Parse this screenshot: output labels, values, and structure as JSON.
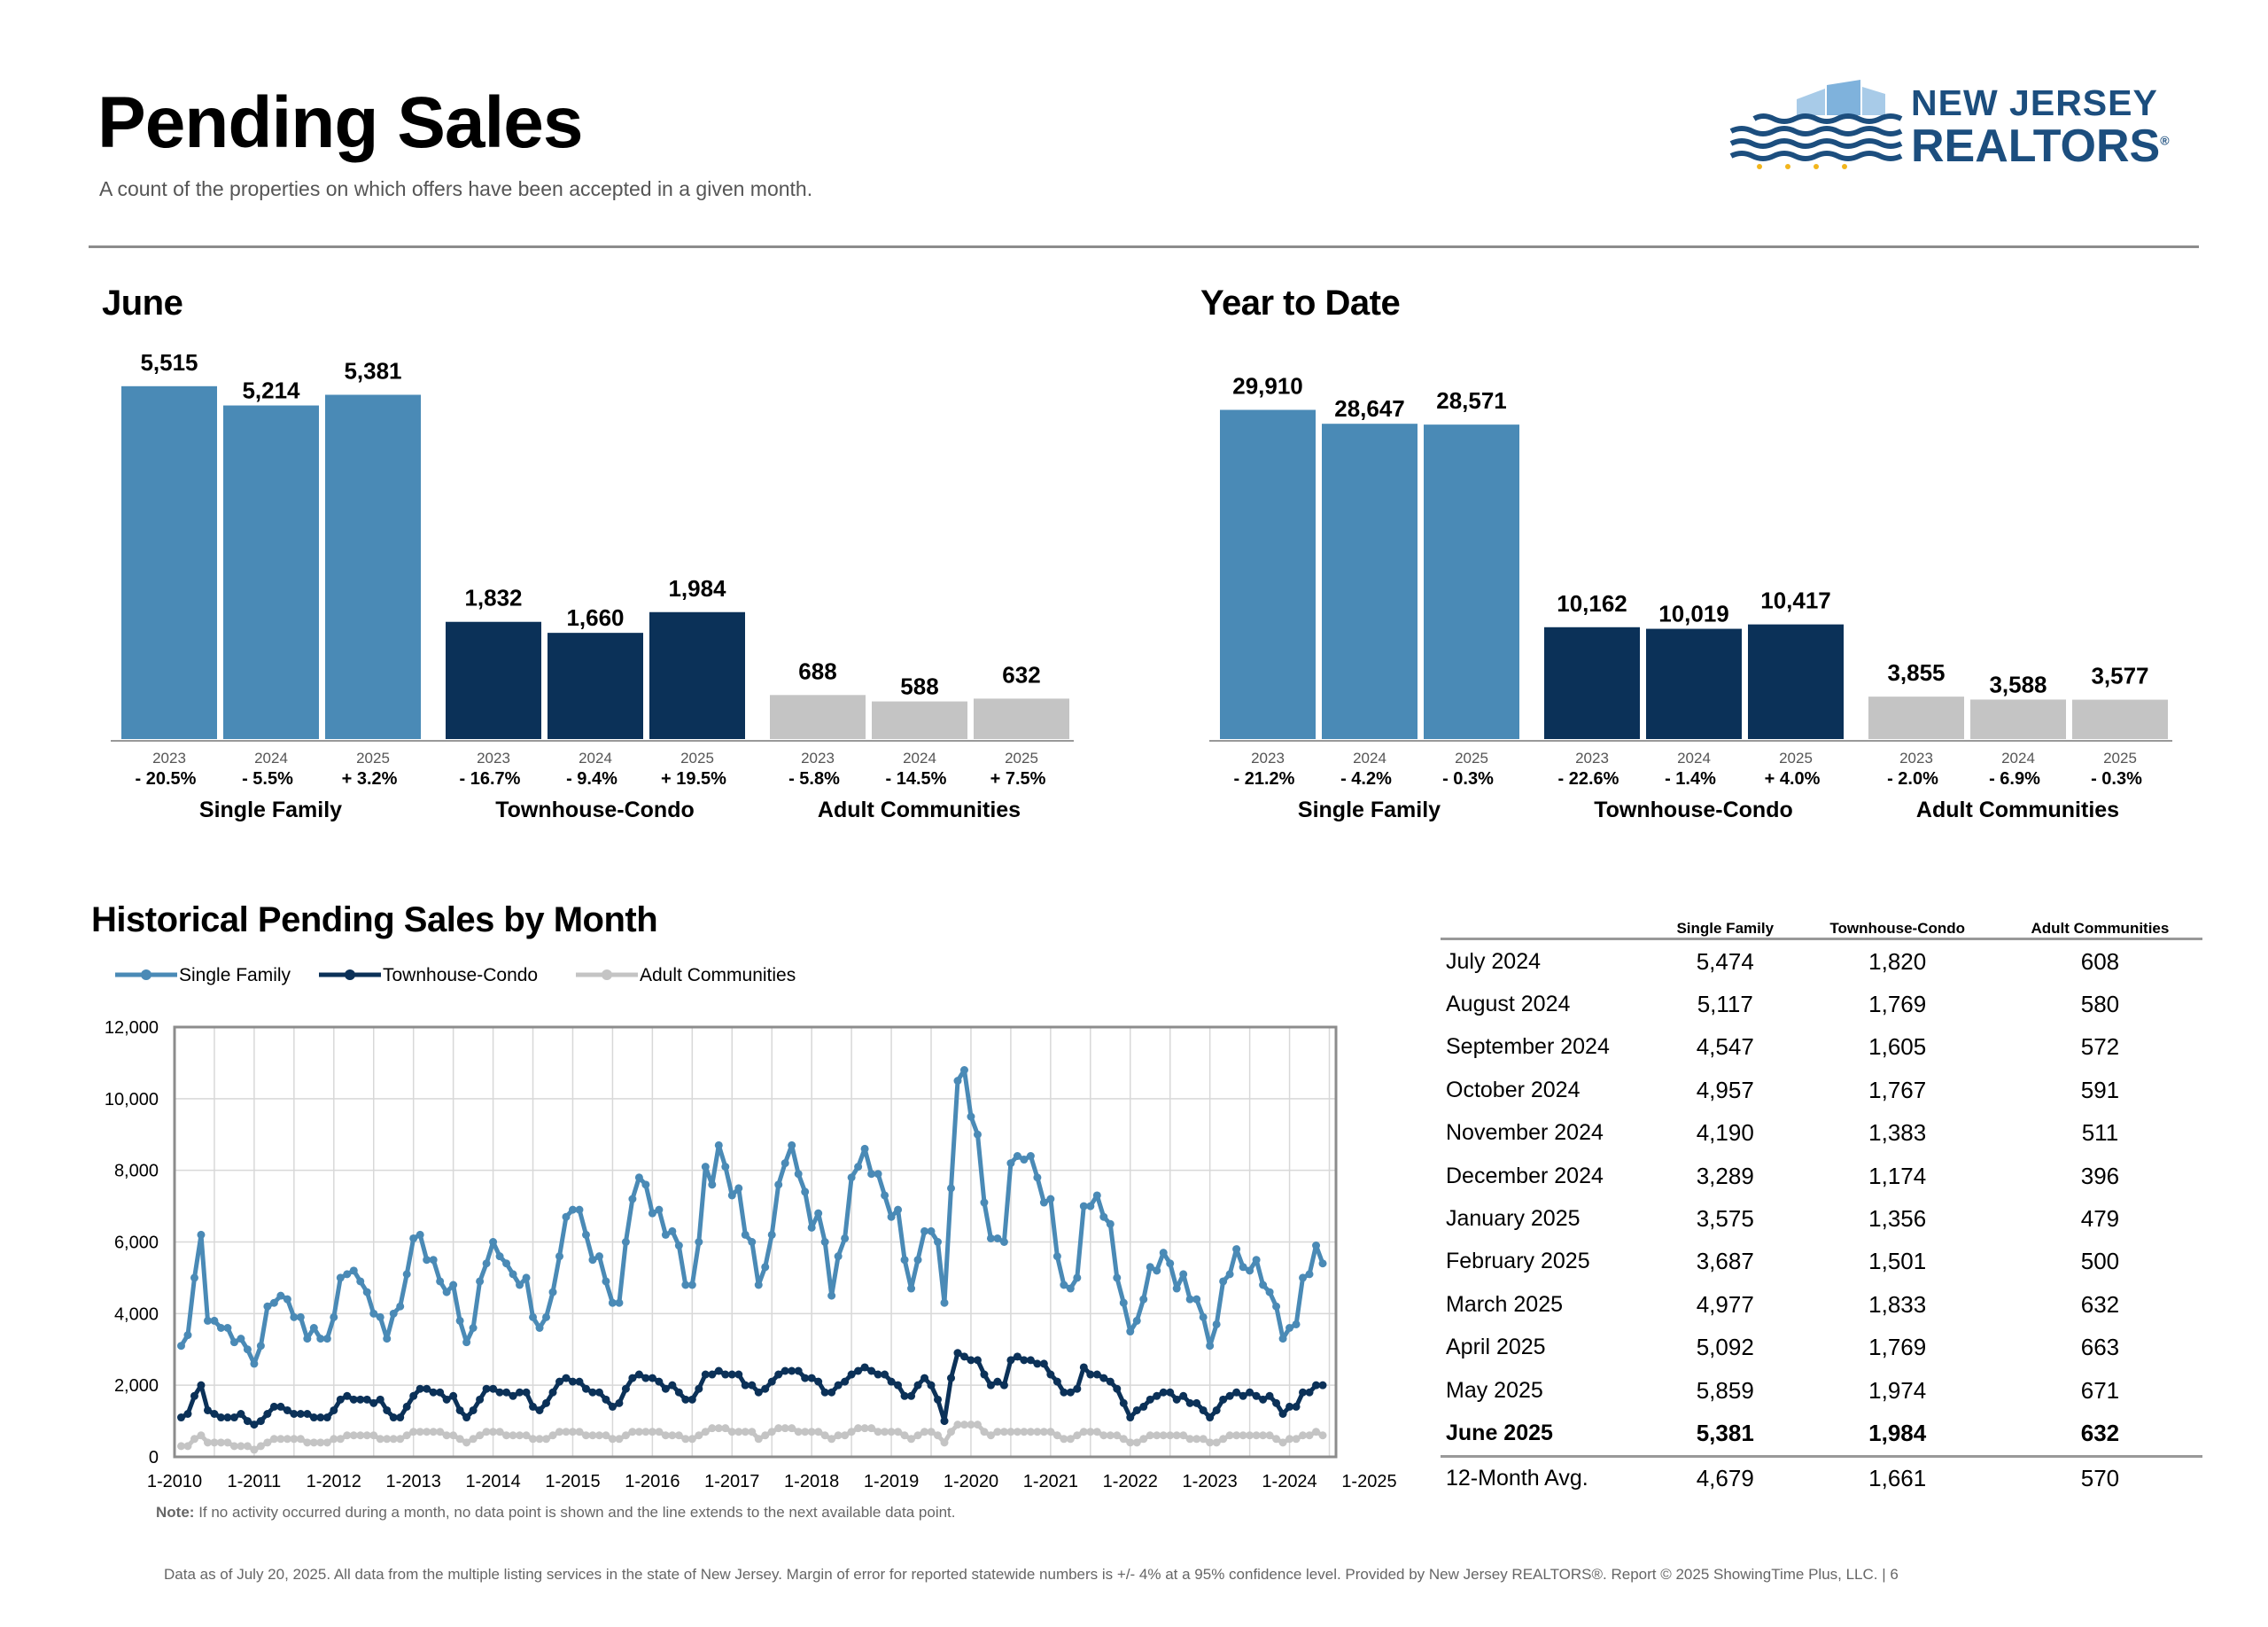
{
  "page": {
    "title": "Pending Sales",
    "subtitle": "A count of the properties on which offers have been accepted in a given month."
  },
  "logo": {
    "line1": "NEW JERSEY",
    "line2": "REALTORS",
    "mark": "®"
  },
  "colors": {
    "single_family": "#4a8ab6",
    "townhouse_condo": "#0b3158",
    "adult_communities": "#c4c4c4",
    "rule": "#8c8c8c"
  },
  "june": {
    "title": "June"
  },
  "ytd": {
    "title": "Year to Date"
  },
  "history": {
    "title": "Historical Pending Sales by Month",
    "note_label": "Note:",
    "note_text": "If no activity occurred during a month, no data point is shown and the line extends to the next available data point."
  },
  "footer": "Data as of July 20, 2025. All data from the multiple listing services in the state of New Jersey. Margin of error for reported statewide numbers is +/- 4% at a 95% confidence level. Provided by New Jersey REALTORS®. Report © 2025 ShowingTime Plus, LLC. | 6",
  "chart_data": [
    {
      "type": "bar",
      "title": "June",
      "groups": [
        {
          "name": "Single Family",
          "years": [
            "2023",
            "2024",
            "2025"
          ],
          "values": [
            5515,
            5214,
            5381
          ],
          "labels": [
            "5,515",
            "5,214",
            "5,381"
          ],
          "changes": [
            "- 20.5%",
            "- 5.5%",
            "+ 3.2%"
          ]
        },
        {
          "name": "Townhouse-Condo",
          "years": [
            "2023",
            "2024",
            "2025"
          ],
          "values": [
            1832,
            1660,
            1984
          ],
          "labels": [
            "1,832",
            "1,660",
            "1,984"
          ],
          "changes": [
            "- 16.7%",
            "- 9.4%",
            "+ 19.5%"
          ]
        },
        {
          "name": "Adult Communities",
          "years": [
            "2023",
            "2024",
            "2025"
          ],
          "values": [
            688,
            588,
            632
          ],
          "labels": [
            "688",
            "588",
            "632"
          ],
          "changes": [
            "- 5.8%",
            "- 14.5%",
            "+ 7.5%"
          ]
        }
      ]
    },
    {
      "type": "bar",
      "title": "Year to Date",
      "groups": [
        {
          "name": "Single Family",
          "years": [
            "2023",
            "2024",
            "2025"
          ],
          "values": [
            29910,
            28647,
            28571
          ],
          "labels": [
            "29,910",
            "28,647",
            "28,571"
          ],
          "changes": [
            "- 21.2%",
            "- 4.2%",
            "- 0.3%"
          ]
        },
        {
          "name": "Townhouse-Condo",
          "years": [
            "2023",
            "2024",
            "2025"
          ],
          "values": [
            10162,
            10019,
            10417
          ],
          "labels": [
            "10,162",
            "10,019",
            "10,417"
          ],
          "changes": [
            "- 22.6%",
            "- 1.4%",
            "+ 4.0%"
          ]
        },
        {
          "name": "Adult Communities",
          "years": [
            "2023",
            "2024",
            "2025"
          ],
          "values": [
            3855,
            3588,
            3577
          ],
          "labels": [
            "3,855",
            "3,588",
            "3,577"
          ],
          "changes": [
            "- 2.0%",
            "- 6.9%",
            "- 0.3%"
          ]
        }
      ]
    },
    {
      "type": "line",
      "title": "Historical Pending Sales by Month",
      "x_start": "1-2010",
      "xticks": [
        "1-2010",
        "1-2011",
        "1-2012",
        "1-2013",
        "1-2014",
        "1-2015",
        "1-2016",
        "1-2017",
        "1-2018",
        "1-2019",
        "1-2020",
        "1-2021",
        "1-2022",
        "1-2023",
        "1-2024",
        "1-2025"
      ],
      "yticks": [
        "0",
        "2,000",
        "4,000",
        "6,000",
        "8,000",
        "10,000",
        "12,000"
      ],
      "ylim": [
        0,
        12000
      ],
      "grid": true,
      "legend": "top-left",
      "series": [
        {
          "name": "Single Family",
          "color": "#4a8ab6",
          "values": [
            3100,
            3400,
            5000,
            6200,
            3800,
            3800,
            3600,
            3600,
            3200,
            3300,
            3000,
            2600,
            3100,
            4200,
            4300,
            4500,
            4400,
            3900,
            3900,
            3300,
            3600,
            3300,
            3300,
            3900,
            5000,
            5100,
            5200,
            4900,
            4600,
            4000,
            3900,
            3300,
            4000,
            4200,
            5100,
            6100,
            6200,
            5500,
            5500,
            4900,
            4600,
            4800,
            3800,
            3200,
            3600,
            4900,
            5400,
            6000,
            5600,
            5400,
            5100,
            4800,
            5000,
            3900,
            3600,
            3900,
            4600,
            5600,
            6700,
            6900,
            6900,
            6200,
            5500,
            5600,
            4900,
            4300,
            4300,
            6000,
            7200,
            7800,
            7600,
            6800,
            6900,
            6200,
            6300,
            5900,
            4800,
            4800,
            6000,
            8100,
            7600,
            8700,
            8100,
            7300,
            7500,
            6200,
            6000,
            4800,
            5300,
            6200,
            7600,
            8200,
            8700,
            7900,
            7400,
            6400,
            6800,
            6000,
            4500,
            5600,
            6100,
            7800,
            8100,
            8600,
            7900,
            7900,
            7300,
            6700,
            6900,
            5500,
            4700,
            5500,
            6300,
            6300,
            6000,
            4300,
            7500,
            10500,
            10800,
            9500,
            9000,
            7100,
            6100,
            6100,
            6000,
            8200,
            8400,
            8300,
            8400,
            7800,
            7100,
            7200,
            5600,
            4800,
            4700,
            5000,
            7000,
            7000,
            7300,
            6700,
            6500,
            5000,
            4300,
            3500,
            3800,
            4400,
            5300,
            5200,
            5700,
            5400,
            4700,
            5100,
            4400,
            4400,
            3900,
            3100,
            3700,
            4900,
            5100,
            5800,
            5300,
            5200,
            5500,
            4800,
            4600,
            4200,
            3300,
            3600,
            3700,
            5000,
            5100,
            5900,
            5400
          ]
        },
        {
          "name": "Townhouse-Condo",
          "color": "#0b3158",
          "values": [
            1100,
            1200,
            1700,
            2000,
            1300,
            1200,
            1100,
            1100,
            1100,
            1200,
            1000,
            900,
            1000,
            1200,
            1400,
            1400,
            1300,
            1200,
            1200,
            1200,
            1100,
            1100,
            1100,
            1300,
            1600,
            1700,
            1600,
            1600,
            1600,
            1500,
            1600,
            1300,
            1100,
            1100,
            1400,
            1700,
            1900,
            1900,
            1800,
            1800,
            1600,
            1700,
            1300,
            1100,
            1300,
            1600,
            1900,
            1900,
            1800,
            1800,
            1700,
            1800,
            1800,
            1400,
            1300,
            1500,
            1800,
            2100,
            2200,
            2100,
            2100,
            1900,
            1800,
            1800,
            1600,
            1400,
            1500,
            1900,
            2200,
            2300,
            2200,
            2200,
            2100,
            1900,
            2000,
            1800,
            1600,
            1600,
            1900,
            2300,
            2300,
            2400,
            2300,
            2300,
            2300,
            2000,
            2000,
            1800,
            1900,
            2100,
            2300,
            2400,
            2400,
            2400,
            2200,
            2200,
            2100,
            1800,
            1800,
            2000,
            2100,
            2300,
            2400,
            2500,
            2400,
            2300,
            2300,
            2100,
            2000,
            1700,
            1700,
            2000,
            2200,
            2000,
            1600,
            1000,
            2200,
            2900,
            2800,
            2700,
            2700,
            2300,
            2000,
            2100,
            2000,
            2700,
            2800,
            2700,
            2700,
            2600,
            2600,
            2300,
            2100,
            1800,
            1800,
            1900,
            2500,
            2300,
            2300,
            2200,
            2100,
            1900,
            1500,
            1100,
            1300,
            1400,
            1600,
            1700,
            1800,
            1800,
            1600,
            1700,
            1500,
            1500,
            1300,
            1100,
            1300,
            1600,
            1700,
            1800,
            1700,
            1800,
            1700,
            1600,
            1700,
            1500,
            1200,
            1400,
            1400,
            1800,
            1800,
            2000,
            2000
          ]
        },
        {
          "name": "Adult Communities",
          "color": "#c4c4c4",
          "values": [
            300,
            300,
            500,
            600,
            400,
            400,
            400,
            400,
            300,
            300,
            300,
            200,
            300,
            400,
            500,
            500,
            500,
            500,
            500,
            400,
            400,
            400,
            400,
            500,
            500,
            600,
            600,
            600,
            600,
            600,
            500,
            500,
            500,
            500,
            600,
            700,
            700,
            700,
            700,
            700,
            600,
            600,
            500,
            400,
            500,
            600,
            700,
            700,
            700,
            600,
            600,
            600,
            600,
            500,
            500,
            500,
            600,
            700,
            700,
            700,
            700,
            600,
            600,
            600,
            600,
            500,
            500,
            600,
            700,
            700,
            700,
            700,
            700,
            600,
            600,
            600,
            500,
            500,
            600,
            700,
            800,
            800,
            800,
            700,
            700,
            700,
            700,
            500,
            600,
            700,
            800,
            800,
            800,
            700,
            700,
            700,
            700,
            600,
            500,
            600,
            600,
            700,
            800,
            800,
            800,
            700,
            700,
            700,
            700,
            600,
            500,
            600,
            700,
            700,
            600,
            400,
            700,
            900,
            900,
            900,
            900,
            700,
            600,
            700,
            700,
            700,
            700,
            700,
            700,
            700,
            700,
            700,
            600,
            500,
            500,
            600,
            700,
            700,
            700,
            600,
            600,
            600,
            500,
            400,
            400,
            500,
            600,
            600,
            600,
            600,
            600,
            600,
            500,
            500,
            500,
            400,
            400,
            500,
            600,
            600,
            600,
            600,
            600,
            600,
            600,
            500,
            400,
            500,
            500,
            600,
            600,
            700,
            600
          ]
        }
      ]
    },
    {
      "type": "table",
      "columns": [
        "Single Family",
        "Townhouse-Condo",
        "Adult Communities"
      ],
      "rows": [
        {
          "month": "July 2024",
          "sf": "5,474",
          "tc": "1,820",
          "ac": "608"
        },
        {
          "month": "August 2024",
          "sf": "5,117",
          "tc": "1,769",
          "ac": "580"
        },
        {
          "month": "September 2024",
          "sf": "4,547",
          "tc": "1,605",
          "ac": "572"
        },
        {
          "month": "October 2024",
          "sf": "4,957",
          "tc": "1,767",
          "ac": "591"
        },
        {
          "month": "November 2024",
          "sf": "4,190",
          "tc": "1,383",
          "ac": "511"
        },
        {
          "month": "December 2024",
          "sf": "3,289",
          "tc": "1,174",
          "ac": "396"
        },
        {
          "month": "January 2025",
          "sf": "3,575",
          "tc": "1,356",
          "ac": "479"
        },
        {
          "month": "February 2025",
          "sf": "3,687",
          "tc": "1,501",
          "ac": "500"
        },
        {
          "month": "March 2025",
          "sf": "4,977",
          "tc": "1,833",
          "ac": "632"
        },
        {
          "month": "April 2025",
          "sf": "5,092",
          "tc": "1,769",
          "ac": "663"
        },
        {
          "month": "May 2025",
          "sf": "5,859",
          "tc": "1,974",
          "ac": "671"
        },
        {
          "month": "June 2025",
          "sf": "5,381",
          "tc": "1,984",
          "ac": "632",
          "highlight": true
        },
        {
          "month": "12-Month Avg.",
          "sf": "4,679",
          "tc": "1,661",
          "ac": "570"
        }
      ]
    }
  ]
}
